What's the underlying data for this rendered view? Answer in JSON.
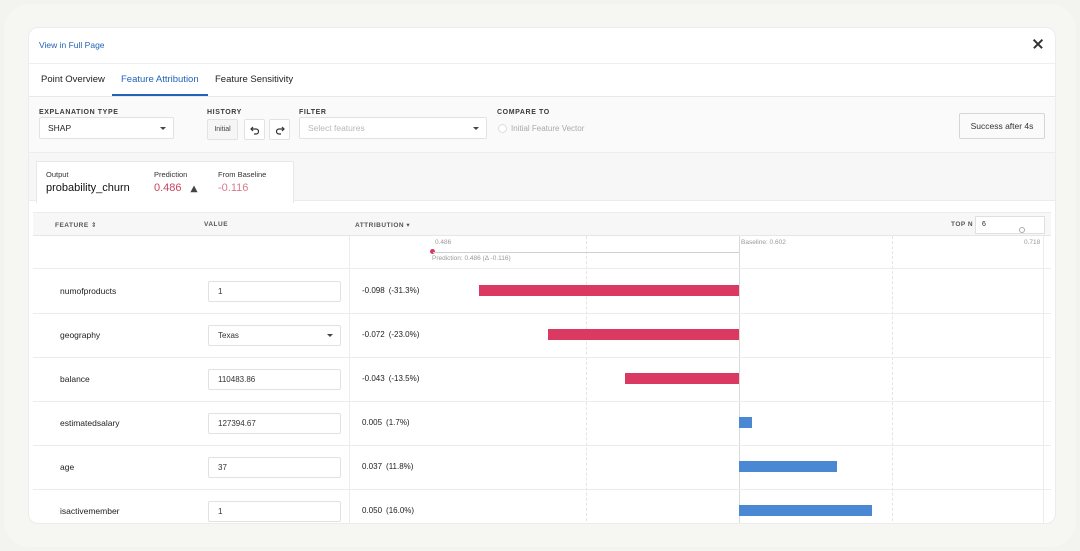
{
  "header": {
    "link": "View in Full Page"
  },
  "tabs": [
    {
      "label": "Point Overview"
    },
    {
      "label": "Feature Attribution"
    },
    {
      "label": "Feature Sensitivity"
    }
  ],
  "controls": {
    "explanation_type": {
      "label": "EXPLANATION TYPE",
      "value": "SHAP"
    },
    "history": {
      "label": "HISTORY",
      "value": "Initial"
    },
    "filter": {
      "label": "FILTER",
      "placeholder": "Select features"
    },
    "compare_to": {
      "label": "COMPARE TO",
      "option": "Initial Feature Vector"
    },
    "status_button": "Success after 4s"
  },
  "summary": {
    "output_label": "Output",
    "output_value": "probability_churn",
    "prediction_label": "Prediction",
    "prediction_value": "0.486",
    "baseline_label": "From Baseline",
    "baseline_value": "-0.116"
  },
  "table": {
    "headers": {
      "feature": "FEATURE",
      "value": "VALUE",
      "attribution": "ATTRIBUTION",
      "topn_label": "TOP N",
      "topn_value": "6"
    },
    "axis": {
      "min_label": "0.486",
      "max_label": "0.718",
      "baseline_label": "Baseline: 0.602",
      "prediction_label": "Prediction: 0.486 (Δ -0.116)"
    },
    "rows": [
      {
        "feature": "numofproducts",
        "value": "1",
        "attribution": "-0.098",
        "pct": "(-31.3%)",
        "delta": -0.098,
        "dropdown": false
      },
      {
        "feature": "geography",
        "value": "Texas",
        "attribution": "-0.072",
        "pct": "(-23.0%)",
        "delta": -0.072,
        "dropdown": true
      },
      {
        "feature": "balance",
        "value": "110483.86",
        "attribution": "-0.043",
        "pct": "(-13.5%)",
        "delta": -0.043,
        "dropdown": false
      },
      {
        "feature": "estimatedsalary",
        "value": "127394.67",
        "attribution": "0.005",
        "pct": "(1.7%)",
        "delta": 0.005,
        "dropdown": false
      },
      {
        "feature": "age",
        "value": "37",
        "attribution": "0.037",
        "pct": "(11.8%)",
        "delta": 0.037,
        "dropdown": false
      },
      {
        "feature": "isactivemember",
        "value": "1",
        "attribution": "0.050",
        "pct": "(16.0%)",
        "delta": 0.05,
        "dropdown": false
      }
    ]
  },
  "colors": {
    "accent": "#2462b8",
    "negative": "#da3a62",
    "positive": "#4a88d4",
    "prediction": "#c9445f"
  },
  "icons": [
    "close-icon",
    "caret-down-icon",
    "undo-icon",
    "redo-icon",
    "sort-icon",
    "warning-triangle-icon"
  ]
}
